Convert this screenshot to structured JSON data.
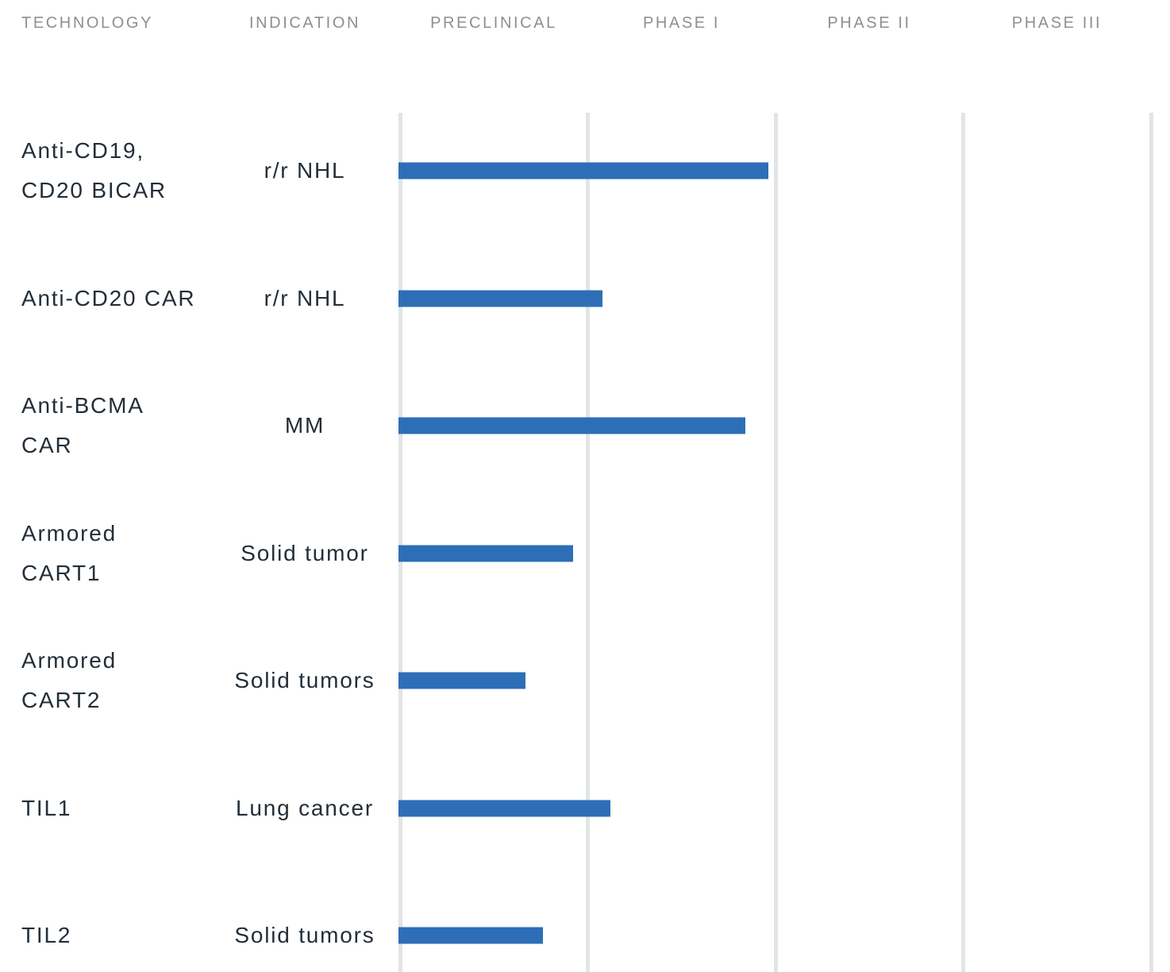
{
  "header": {
    "technology_label": "TECHNOLOGY",
    "indication_label": "INDICATION"
  },
  "chart_data": {
    "type": "bar",
    "orientation": "horizontal",
    "stages": [
      "PRECLINICAL",
      "PHASE I",
      "PHASE II",
      "PHASE III"
    ],
    "stage_axis_range": [
      0,
      4
    ],
    "grid": true,
    "rows": [
      {
        "technology_lines": [
          "Anti-CD19,",
          "CD20 BICAR"
        ],
        "indication": "r/r NHL",
        "extent_stages": 1.96
      },
      {
        "technology_lines": [
          "Anti-CD20 CAR"
        ],
        "indication": "r/r NHL",
        "extent_stages": 1.08
      },
      {
        "technology_lines": [
          "Anti-BCMA",
          "CAR"
        ],
        "indication": "MM",
        "extent_stages": 1.84
      },
      {
        "technology_lines": [
          "Armored",
          "CART1"
        ],
        "indication": "Solid tumor",
        "extent_stages": 0.92
      },
      {
        "technology_lines": [
          "Armored",
          "CART2"
        ],
        "indication": "Solid tumors",
        "extent_stages": 0.67
      },
      {
        "technology_lines": [
          "TIL1"
        ],
        "indication": "Lung cancer",
        "extent_stages": 1.12
      },
      {
        "technology_lines": [
          "TIL2"
        ],
        "indication": "Solid tumors",
        "extent_stages": 0.76
      }
    ],
    "colors": {
      "bar": "#2d6eb7",
      "gridline": "#e1e5e6",
      "header_text": "#8e8f91",
      "body_text": "#232e38"
    }
  }
}
